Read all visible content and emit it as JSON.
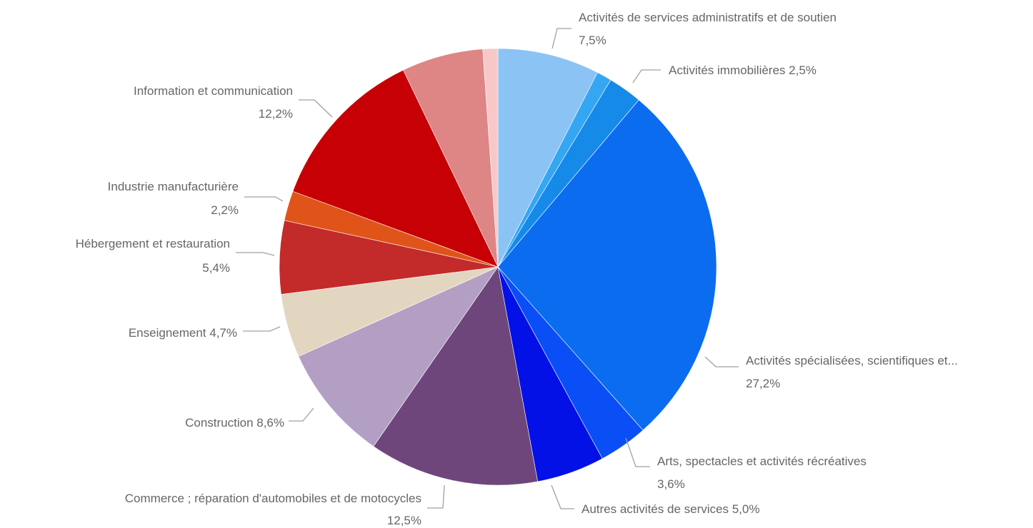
{
  "chart_data": {
    "type": "pie",
    "title": "",
    "slices": [
      {
        "name": "Activités de services administratifs et de soutien",
        "value": 7.5,
        "value_label": "7,5%",
        "color": "#8cc3f5"
      },
      {
        "name": "",
        "value": 1.1,
        "value_label": "",
        "color": "#35a6f2"
      },
      {
        "name": "Activités immobilières",
        "value": 2.5,
        "value_label": "2,5%",
        "color": "#168ae8"
      },
      {
        "name": "Activités spécialisées, scientifiques et...",
        "value": 27.2,
        "value_label": "27,2%",
        "color": "#0b6cf0"
      },
      {
        "name": "Arts, spectacles et activités récréatives",
        "value": 3.6,
        "value_label": "3,6%",
        "color": "#0a4ef5"
      },
      {
        "name": "Autres activités de services",
        "value": 5.0,
        "value_label": "5,0%",
        "color": "#0311e6"
      },
      {
        "name": "Commerce ; réparation d'automobiles et de motocycles",
        "value": 12.5,
        "value_label": "12,5%",
        "color": "#6e467c"
      },
      {
        "name": "Construction",
        "value": 8.6,
        "value_label": "8,6%",
        "color": "#b39fc3"
      },
      {
        "name": "Enseignement",
        "value": 4.7,
        "value_label": "4,7%",
        "color": "#e2d6c0"
      },
      {
        "name": "Hébergement et restauration",
        "value": 5.4,
        "value_label": "5,4%",
        "color": "#c32a2a"
      },
      {
        "name": "Industrie manufacturière",
        "value": 2.2,
        "value_label": "2,2%",
        "color": "#e0541a"
      },
      {
        "name": "Information et communication",
        "value": 12.2,
        "value_label": "12,2%",
        "color": "#c60004"
      },
      {
        "name": "",
        "value": 6.0,
        "value_label": "",
        "color": "#de8585"
      },
      {
        "name": "",
        "value": 1.1,
        "value_label": "",
        "color": "#f8c8c8"
      }
    ],
    "labels": [
      {
        "text": "Activités de services administratifs et de soutien",
        "value_text": "7,5%"
      },
      {
        "text": "Activités immobilières 2,5%",
        "value_text": ""
      },
      {
        "text": "Activités spécialisées, scientifiques et...",
        "value_text": "27,2%"
      },
      {
        "text": "Arts, spectacles et activités récréatives",
        "value_text": "3,6%"
      },
      {
        "text": "Autres activités de services 5,0%",
        "value_text": ""
      },
      {
        "text": "Commerce ; réparation d'automobiles et de motocycles",
        "value_text": "12,5%"
      },
      {
        "text": "Construction 8,6%",
        "value_text": ""
      },
      {
        "text": "Enseignement 4,7%",
        "value_text": ""
      },
      {
        "text": "Hébergement et restauration",
        "value_text": "5,4%"
      },
      {
        "text": "Industrie manufacturière",
        "value_text": "2,2%"
      },
      {
        "text": "Information et communication",
        "value_text": "12,2%"
      }
    ],
    "start_angle_deg": 0,
    "direction": "clockwise",
    "legend": "none"
  }
}
